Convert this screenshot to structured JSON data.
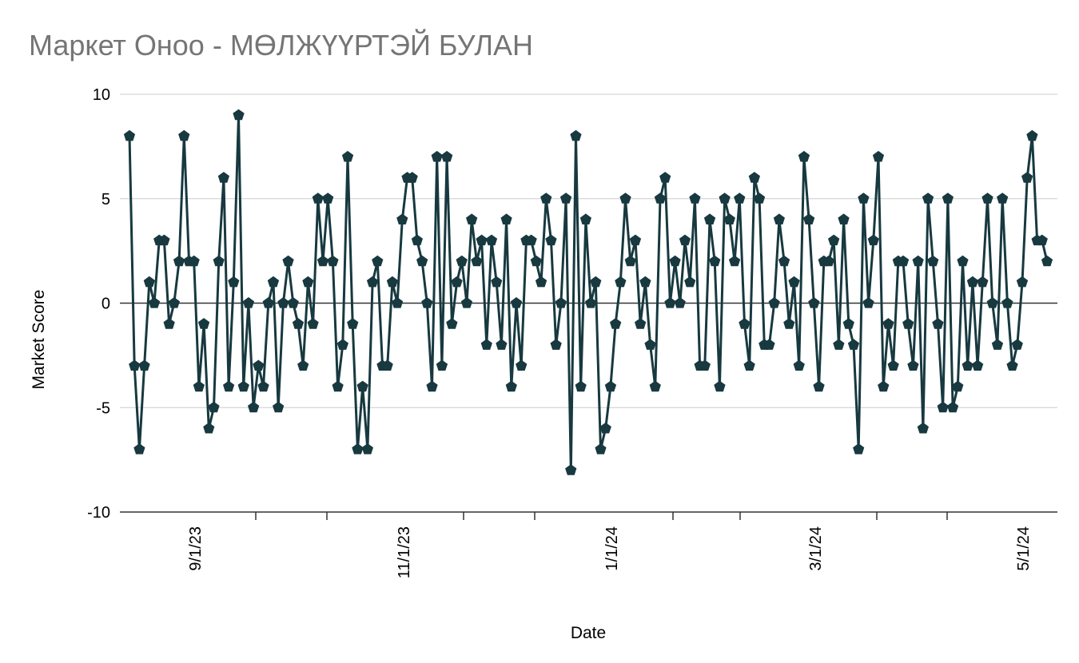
{
  "chart_data": {
    "type": "line",
    "title": "Маркет Оноо - МӨЛЖҮҮРТЭЙ БУЛАН",
    "xlabel": "Date",
    "ylabel": "Market Score",
    "ylim": [
      -10,
      10
    ],
    "y_ticks": [
      "10",
      "5",
      "0",
      "-5",
      "-10"
    ],
    "x_ticks": [
      "9/1/23",
      "11/1/23",
      "1/1/24",
      "3/1/24",
      "5/1/24"
    ],
    "grid": true,
    "legend": "none",
    "line_color": "#17393f",
    "marker": "pentagon",
    "series": [
      {
        "values": [
          8,
          -3,
          -7,
          -3,
          1,
          0,
          3,
          3,
          -1,
          0,
          2,
          8,
          2,
          2,
          -4,
          -1,
          -6,
          -5,
          2,
          6,
          -4,
          1,
          9,
          -4,
          0,
          -5,
          -3,
          -4,
          0,
          1,
          -5,
          0,
          2,
          0,
          -1,
          -3,
          1,
          -1,
          5,
          2,
          5,
          2,
          -4,
          -2,
          7,
          -1,
          -7,
          -4,
          -7,
          1,
          2,
          -3,
          -3,
          1,
          0,
          4,
          6,
          6,
          3,
          2,
          0,
          -4,
          7,
          -3,
          7,
          -1,
          1,
          2,
          0,
          4,
          2,
          3,
          -2,
          3,
          1,
          -2,
          4,
          -4,
          0,
          -3,
          3,
          3,
          2,
          1,
          5,
          3,
          -2,
          0,
          5,
          -8,
          8,
          -4,
          4,
          0,
          1,
          -7,
          -6,
          -4,
          -1,
          1,
          5,
          2,
          3,
          -1,
          1,
          -2,
          -4,
          5,
          6,
          0,
          2,
          0,
          3,
          1,
          5,
          -3,
          -3,
          4,
          2,
          -4,
          5,
          4,
          2,
          5,
          -1,
          -3,
          6,
          5,
          -2,
          -2,
          0,
          4,
          2,
          -1,
          1,
          -3,
          7,
          4,
          0,
          -4,
          2,
          2,
          3,
          -2,
          4,
          -1,
          -2,
          -7,
          5,
          0,
          3,
          7,
          -4,
          -1,
          -3,
          2,
          2,
          -1,
          -3,
          2,
          -6,
          5,
          2,
          -1,
          -5,
          5,
          -5,
          -4,
          2,
          -3,
          1,
          -3,
          1,
          5,
          0,
          -2,
          5,
          0,
          -3,
          -2,
          1,
          6,
          8,
          3,
          3,
          2
        ]
      }
    ]
  }
}
